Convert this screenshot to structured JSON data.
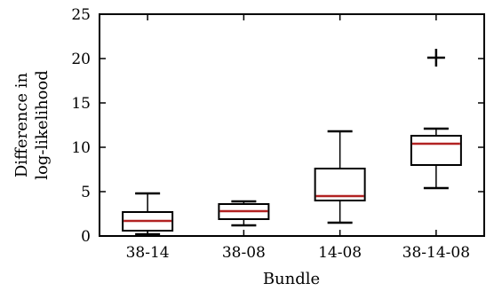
{
  "chart_data": {
    "type": "box",
    "title": "",
    "xlabel": "Bundle",
    "ylabel_lines": [
      "Difference in",
      "log-likelihood"
    ],
    "ylim": [
      0,
      25
    ],
    "yticks": [
      0,
      5,
      10,
      15,
      20,
      25
    ],
    "grid": false,
    "categories": [
      "38-14",
      "38-08",
      "14-08",
      "38-14-08"
    ],
    "boxes": [
      {
        "min": 0.2,
        "q1": 0.6,
        "median": 1.7,
        "q3": 2.7,
        "max": 4.8,
        "outliers": []
      },
      {
        "min": 1.2,
        "q1": 1.9,
        "median": 2.8,
        "q3": 3.6,
        "max": 3.9,
        "outliers": []
      },
      {
        "min": 1.5,
        "q1": 4.0,
        "median": 4.5,
        "q3": 7.6,
        "max": 11.8,
        "outliers": []
      },
      {
        "min": 5.4,
        "q1": 8.0,
        "median": 10.4,
        "q3": 11.3,
        "max": 12.1,
        "outliers": [
          20.1
        ]
      }
    ],
    "colors": {
      "box": "#000000",
      "median": "#b22222",
      "axis": "#000000"
    }
  }
}
